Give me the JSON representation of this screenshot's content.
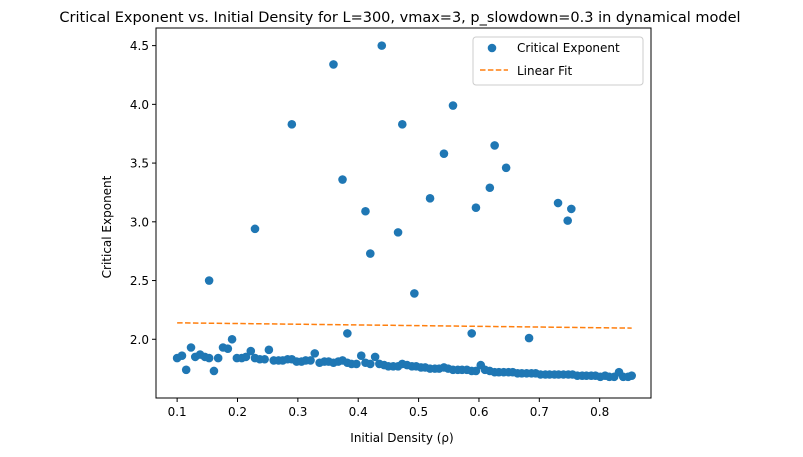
{
  "chart_data": {
    "type": "scatter",
    "title": "Critical Exponent vs. Initial Density for L=300, vmax=3, p_slowdown=0.3 in dynamical model",
    "xlabel": "Initial Density (ρ)",
    "ylabel": "Critical Exponent",
    "xlim": [
      0.065,
      0.885
    ],
    "ylim": [
      1.5,
      4.65
    ],
    "xticks": [
      0.1,
      0.2,
      0.3,
      0.4,
      0.5,
      0.6,
      0.7,
      0.8
    ],
    "xtick_labels": [
      "0.1",
      "0.2",
      "0.3",
      "0.4",
      "0.5",
      "0.6",
      "0.7",
      "0.8"
    ],
    "yticks": [
      2.0,
      2.5,
      3.0,
      3.5,
      4.0,
      4.5
    ],
    "ytick_labels": [
      "2.0",
      "2.5",
      "3.0",
      "3.5",
      "4.0",
      "4.5"
    ],
    "grid": false,
    "legend_position": "top-right",
    "series": [
      {
        "name": "Critical Exponent",
        "kind": "scatter",
        "color": "#1f77b4",
        "points": [
          [
            0.1,
            1.84
          ],
          [
            0.108,
            1.86
          ],
          [
            0.115,
            1.74
          ],
          [
            0.123,
            1.93
          ],
          [
            0.13,
            1.85
          ],
          [
            0.138,
            1.87
          ],
          [
            0.146,
            1.85
          ],
          [
            0.153,
            1.84
          ],
          [
            0.161,
            1.73
          ],
          [
            0.168,
            1.84
          ],
          [
            0.176,
            1.93
          ],
          [
            0.184,
            1.92
          ],
          [
            0.191,
            2.0
          ],
          [
            0.199,
            1.84
          ],
          [
            0.207,
            1.84
          ],
          [
            0.214,
            1.85
          ],
          [
            0.222,
            1.9
          ],
          [
            0.229,
            1.84
          ],
          [
            0.237,
            1.83
          ],
          [
            0.245,
            1.83
          ],
          [
            0.252,
            1.91
          ],
          [
            0.26,
            1.82
          ],
          [
            0.268,
            1.82
          ],
          [
            0.275,
            1.82
          ],
          [
            0.283,
            1.83
          ],
          [
            0.29,
            1.83
          ],
          [
            0.298,
            1.81
          ],
          [
            0.306,
            1.81
          ],
          [
            0.313,
            1.82
          ],
          [
            0.321,
            1.82
          ],
          [
            0.328,
            1.88
          ],
          [
            0.336,
            1.8
          ],
          [
            0.344,
            1.81
          ],
          [
            0.351,
            1.81
          ],
          [
            0.359,
            1.8
          ],
          [
            0.367,
            1.81
          ],
          [
            0.374,
            1.82
          ],
          [
            0.382,
            1.8
          ],
          [
            0.389,
            1.79
          ],
          [
            0.397,
            1.79
          ],
          [
            0.405,
            1.86
          ],
          [
            0.412,
            1.8
          ],
          [
            0.42,
            1.79
          ],
          [
            0.428,
            1.85
          ],
          [
            0.435,
            1.79
          ],
          [
            0.443,
            1.78
          ],
          [
            0.45,
            1.77
          ],
          [
            0.458,
            1.77
          ],
          [
            0.466,
            1.77
          ],
          [
            0.473,
            1.79
          ],
          [
            0.481,
            1.78
          ],
          [
            0.489,
            1.77
          ],
          [
            0.496,
            1.77
          ],
          [
            0.504,
            1.76
          ],
          [
            0.511,
            1.76
          ],
          [
            0.519,
            1.75
          ],
          [
            0.527,
            1.75
          ],
          [
            0.534,
            1.75
          ],
          [
            0.542,
            1.76
          ],
          [
            0.549,
            1.75
          ],
          [
            0.557,
            1.74
          ],
          [
            0.565,
            1.74
          ],
          [
            0.572,
            1.74
          ],
          [
            0.58,
            1.74
          ],
          [
            0.588,
            1.73
          ],
          [
            0.595,
            1.73
          ],
          [
            0.603,
            1.78
          ],
          [
            0.61,
            1.74
          ],
          [
            0.618,
            1.73
          ],
          [
            0.626,
            1.72
          ],
          [
            0.633,
            1.72
          ],
          [
            0.641,
            1.72
          ],
          [
            0.649,
            1.72
          ],
          [
            0.656,
            1.72
          ],
          [
            0.664,
            1.71
          ],
          [
            0.671,
            1.71
          ],
          [
            0.679,
            1.71
          ],
          [
            0.687,
            1.71
          ],
          [
            0.694,
            1.71
          ],
          [
            0.702,
            1.7
          ],
          [
            0.71,
            1.7
          ],
          [
            0.717,
            1.7
          ],
          [
            0.725,
            1.7
          ],
          [
            0.732,
            1.7
          ],
          [
            0.74,
            1.7
          ],
          [
            0.748,
            1.7
          ],
          [
            0.755,
            1.7
          ],
          [
            0.763,
            1.69
          ],
          [
            0.771,
            1.69
          ],
          [
            0.778,
            1.69
          ],
          [
            0.786,
            1.69
          ],
          [
            0.793,
            1.69
          ],
          [
            0.801,
            1.68
          ],
          [
            0.809,
            1.69
          ],
          [
            0.816,
            1.68
          ],
          [
            0.824,
            1.68
          ],
          [
            0.832,
            1.72
          ],
          [
            0.839,
            1.68
          ],
          [
            0.847,
            1.68
          ],
          [
            0.853,
            1.69
          ],
          [
            0.153,
            2.5
          ],
          [
            0.229,
            2.94
          ],
          [
            0.29,
            3.83
          ],
          [
            0.359,
            4.34
          ],
          [
            0.374,
            3.36
          ],
          [
            0.382,
            2.05
          ],
          [
            0.412,
            3.09
          ],
          [
            0.42,
            2.73
          ],
          [
            0.439,
            4.5
          ],
          [
            0.466,
            2.91
          ],
          [
            0.473,
            3.83
          ],
          [
            0.493,
            2.39
          ],
          [
            0.519,
            3.2
          ],
          [
            0.542,
            3.58
          ],
          [
            0.557,
            3.99
          ],
          [
            0.588,
            2.05
          ],
          [
            0.595,
            3.12
          ],
          [
            0.618,
            3.29
          ],
          [
            0.626,
            3.65
          ],
          [
            0.645,
            3.46
          ],
          [
            0.683,
            2.01
          ],
          [
            0.731,
            3.16
          ],
          [
            0.747,
            3.01
          ],
          [
            0.753,
            3.11
          ]
        ]
      },
      {
        "name": "Linear Fit",
        "kind": "line",
        "style": "dashed",
        "color": "#ff7f0e",
        "x": [
          0.1,
          0.853
        ],
        "y": [
          2.14,
          2.095
        ]
      }
    ]
  }
}
